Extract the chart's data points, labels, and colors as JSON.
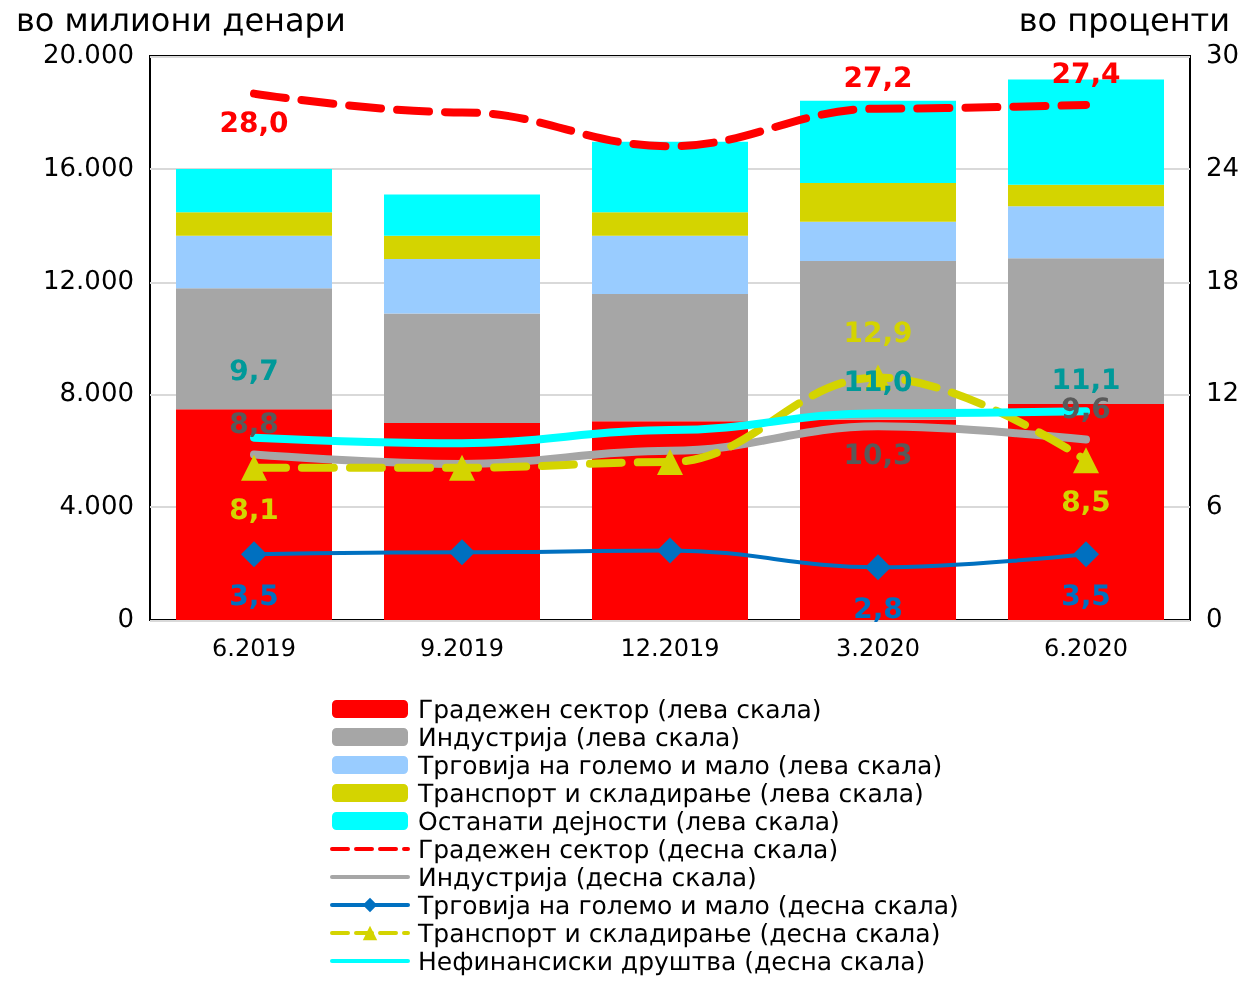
{
  "chart_data": {
    "type": "bar",
    "stacked": true,
    "ylabel": "во милиони денари",
    "y2label": "во проценти",
    "categories": [
      "6.2019",
      "9.2019",
      "12.2019",
      "3.2020",
      "6.2020"
    ],
    "ylim": [
      0,
      20000
    ],
    "yticks": [
      {
        "value": 0,
        "label": "0"
      },
      {
        "value": 4000,
        "label": "4.000"
      },
      {
        "value": 8000,
        "label": "8.000"
      },
      {
        "value": 12000,
        "label": "12.000"
      },
      {
        "value": 16000,
        "label": "16.000"
      },
      {
        "value": 20000,
        "label": "20.000"
      }
    ],
    "y2lim": [
      0,
      30
    ],
    "y2ticks": [
      0,
      6,
      12,
      18,
      24,
      30
    ],
    "grid": "y",
    "legend": "bottom",
    "series": [
      {
        "name": "Градежен сектор (лева скала)",
        "color": "#ff0000",
        "values": [
          7470,
          6990,
          7050,
          7100,
          7660
        ]
      },
      {
        "name": "Индустрија (лева скала)",
        "color": "#a6a6a6",
        "values": [
          4290,
          3880,
          4510,
          5630,
          5170
        ]
      },
      {
        "name": "Трговија на големо и мало (лева скала)",
        "color": "#99ccff",
        "values": [
          1870,
          1930,
          2070,
          1390,
          1840
        ]
      },
      {
        "name": "Транспорт и складирање (лева скала)",
        "color": "#d4d400",
        "values": [
          830,
          830,
          830,
          1380,
          760
        ]
      },
      {
        "name": "Останати дејности (лева скала)",
        "color": "#00ffff",
        "values": [
          1530,
          1460,
          2500,
          2910,
          3740
        ]
      },
      {
        "name": "Градежен сектор (десна скала)",
        "type": "line",
        "axis": "y2",
        "color": "#ff0000",
        "line_style": "dashed",
        "marker": "none",
        "values": [
          28.0,
          27.0,
          25.2,
          27.2,
          27.4
        ],
        "value_labels": [
          "28,0",
          null,
          null,
          "27,2",
          "27,4"
        ]
      },
      {
        "name": "Индустрија (десна скала)",
        "type": "line",
        "axis": "y2",
        "color": "#a6a6a6",
        "line_style": "solid",
        "marker": "none",
        "values": [
          8.8,
          8.3,
          9.0,
          10.3,
          9.6
        ],
        "value_labels": [
          "8,8",
          null,
          null,
          "10,3",
          "9,6"
        ]
      },
      {
        "name": "Трговија на големо и мало (десна скала)",
        "type": "line",
        "axis": "y2",
        "color": "#0070c0",
        "line_style": "solid",
        "marker": "diamond",
        "values": [
          3.5,
          3.6,
          3.7,
          2.8,
          3.5
        ],
        "value_labels": [
          "3,5",
          null,
          null,
          "2,8",
          "3,5"
        ]
      },
      {
        "name": "Транспорт и складирање (десна скала)",
        "type": "line",
        "axis": "y2",
        "color": "#d4d400",
        "line_style": "dashed",
        "marker": "triangle",
        "values": [
          8.1,
          8.1,
          8.4,
          12.9,
          8.5
        ],
        "value_labels": [
          "8,1",
          null,
          null,
          "12,9",
          "8,5"
        ]
      },
      {
        "name": "Нефинансиски друштва (десна скала)",
        "type": "line",
        "axis": "y2",
        "color": "#00ffff",
        "line_style": "solid",
        "marker": "none",
        "values": [
          9.7,
          9.4,
          10.1,
          11.0,
          11.1
        ],
        "value_labels": [
          "9,7",
          null,
          null,
          "11,0",
          "11,1"
        ]
      }
    ]
  }
}
